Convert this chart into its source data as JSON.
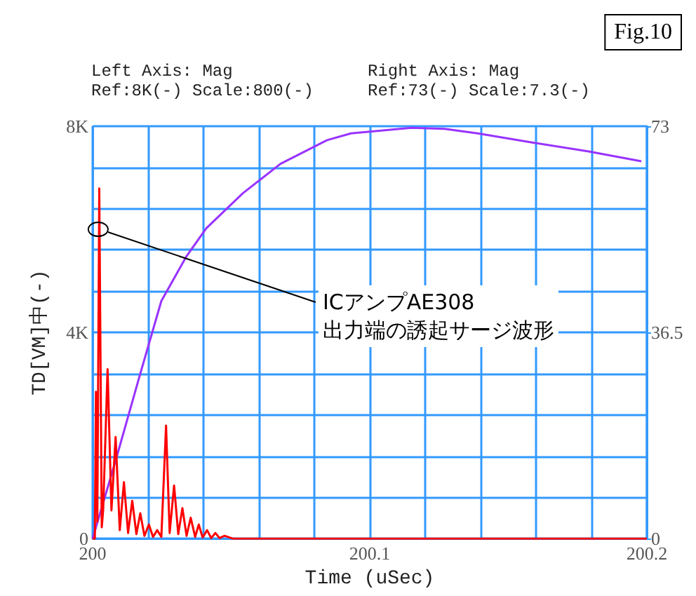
{
  "chart_data": {
    "type": "line",
    "xlabel": "Time (uSec)",
    "ylabel": "TD[VM]中(-)",
    "annotations": [
      "Fig.10",
      "Left Axis: Mag\nRef:8K(-) Scale:800(-)",
      "Right Axis: Mag\nRef:73(-) Scale:7.3(-)",
      {
        "text": "ICアンプAE308\n出力端の誘起サージ波形",
        "x": 200.002,
        "y": 6000
      }
    ],
    "xlim": [
      200,
      200.2
    ],
    "xticks": [
      200,
      {
        "value": 200.02,
        "label": null
      },
      {
        "value": 200.04,
        "label": null
      },
      {
        "value": 200.06,
        "label": null
      },
      {
        "value": 200.08,
        "label": null
      },
      200.1,
      {
        "value": 200.12,
        "label": null
      },
      {
        "value": 200.14,
        "label": null
      },
      {
        "value": 200.16,
        "label": null
      },
      {
        "value": 200.18,
        "label": null
      },
      200.2
    ],
    "ylim": [
      0,
      8000
    ],
    "yticks": [
      0,
      {
        "value": 800,
        "label": null
      },
      {
        "value": 1600,
        "label": null
      },
      {
        "value": 2400,
        "label": null
      },
      {
        "value": 3200,
        "label": null
      },
      {
        "value": 4000,
        "label": "4K"
      },
      {
        "value": 4800,
        "label": null
      },
      {
        "value": 5600,
        "label": null
      },
      {
        "value": 6400,
        "label": null
      },
      {
        "value": 7200,
        "label": null
      },
      {
        "value": 8000,
        "label": "8K"
      }
    ],
    "y2lim": [
      0,
      73
    ],
    "y2ticks": [
      0,
      36.5,
      73
    ],
    "grid": true,
    "line_style": "solid",
    "series": [
      {
        "color": "#9933ff",
        "x": [
          200,
          200.0086,
          200.0172,
          200.0248,
          200.0339,
          200.041,
          200.0542,
          200.0678,
          200.0846,
          200.0932,
          200.1048,
          200.115,
          200.127,
          200.139,
          200.159,
          200.179,
          200.198
        ],
        "values": [
          0,
          1570,
          3200,
          4610,
          5480,
          6020,
          6700,
          7270,
          7730,
          7860,
          7920,
          7970,
          7950,
          7860,
          7680,
          7510,
          7320
        ]
      },
      {
        "color": "#ff0000",
        "axis": "y2",
        "x": [
          200,
          200.0008,
          200.0012,
          200.0017,
          200.0024,
          200.0033,
          200.0038,
          200.0054,
          200.0068,
          200.0083,
          200.0098,
          200.0113,
          200.0128,
          200.0143,
          200.0158,
          200.0172,
          200.0187,
          200.0203,
          200.0218,
          200.0233,
          200.0248,
          200.0265,
          200.0278,
          200.0294,
          200.0309,
          200.0324,
          200.0339,
          200.0354,
          200.037,
          200.0383,
          200.0397,
          200.0413,
          200.0428,
          200.0443,
          200.0458,
          200.0476,
          200.0506,
          200.2
        ],
        "values": [
          0,
          0,
          26,
          3,
          62,
          2,
          5,
          30,
          5,
          18,
          1.5,
          10,
          1,
          6.7,
          0.8,
          4.5,
          0.5,
          2.5,
          0.3,
          1.5,
          0.3,
          20,
          1,
          9.4,
          0.8,
          5.4,
          0.5,
          3.7,
          0.3,
          2.5,
          0.2,
          1.5,
          0.1,
          1,
          0.1,
          0.5,
          0,
          0
        ]
      }
    ]
  }
}
